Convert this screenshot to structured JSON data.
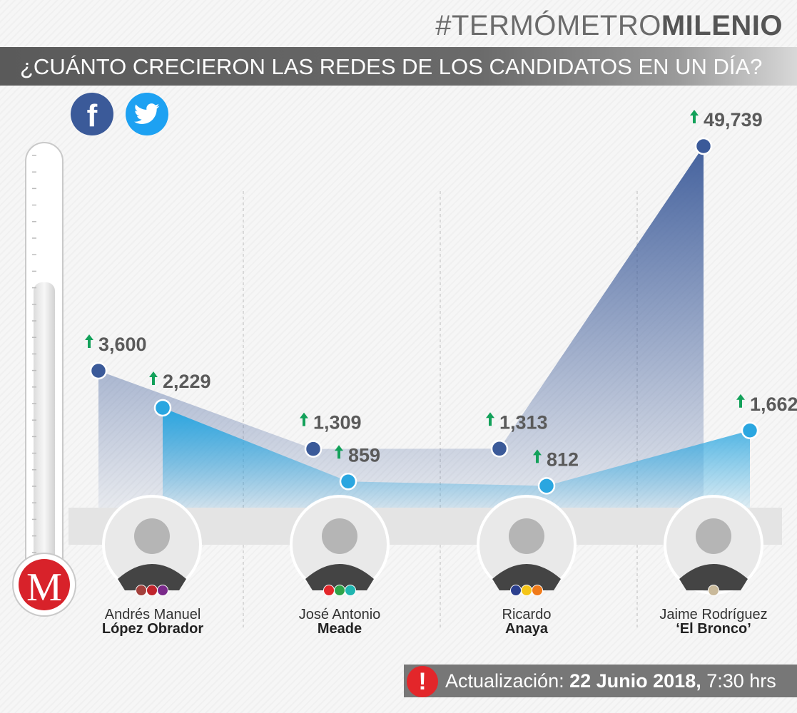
{
  "brand": {
    "prefix": "#TERMÓMETRO",
    "suffix": "MILENIO"
  },
  "headline": "¿CUÁNTO CRECIERON LAS REDES DE LOS CANDIDATOS EN UN DÍA?",
  "social": {
    "facebook_icon": "facebook-icon",
    "twitter_icon": "twitter-icon"
  },
  "colors": {
    "facebook": "#3b5a99",
    "twitter": "#2aa6e0",
    "arrow": "#13a15a",
    "logo_red": "#d8222a"
  },
  "chart_data": {
    "type": "line",
    "categories": [
      "Andrés Manuel López Obrador",
      "José Antonio Meade",
      "Ricardo Anaya",
      "Jaime Rodríguez 'El Bronco'"
    ],
    "series": [
      {
        "icon": "facebook-icon",
        "values": [
          3600,
          1309,
          1313,
          49739
        ],
        "labels": [
          "3,600",
          "1,309",
          "1,313",
          "49,739"
        ]
      },
      {
        "icon": "twitter-icon",
        "values": [
          2229,
          859,
          812,
          1662
        ],
        "labels": [
          "2,229",
          "859",
          "812",
          "1,662"
        ]
      }
    ]
  },
  "candidates": [
    {
      "first": "Andrés Manuel",
      "last": "López Obrador",
      "party_colors": [
        "#a3403c",
        "#c0242c",
        "#7a2a8a"
      ]
    },
    {
      "first": "José Antonio",
      "last": "Meade",
      "party_colors": [
        "#e3262a",
        "#2fa34a",
        "#1fb5b0"
      ]
    },
    {
      "first": "Ricardo",
      "last": "Anaya",
      "party_colors": [
        "#2b3f8e",
        "#f5c518",
        "#f07a1a"
      ]
    },
    {
      "first": "Jaime Rodríguez",
      "last": "‘El Bronco’",
      "party_colors": [
        "#c9b99a"
      ]
    }
  ],
  "update": {
    "label": "Actualización:",
    "date": "22 Junio 2018,",
    "time": "7:30 hrs"
  },
  "logo_letter": "M"
}
